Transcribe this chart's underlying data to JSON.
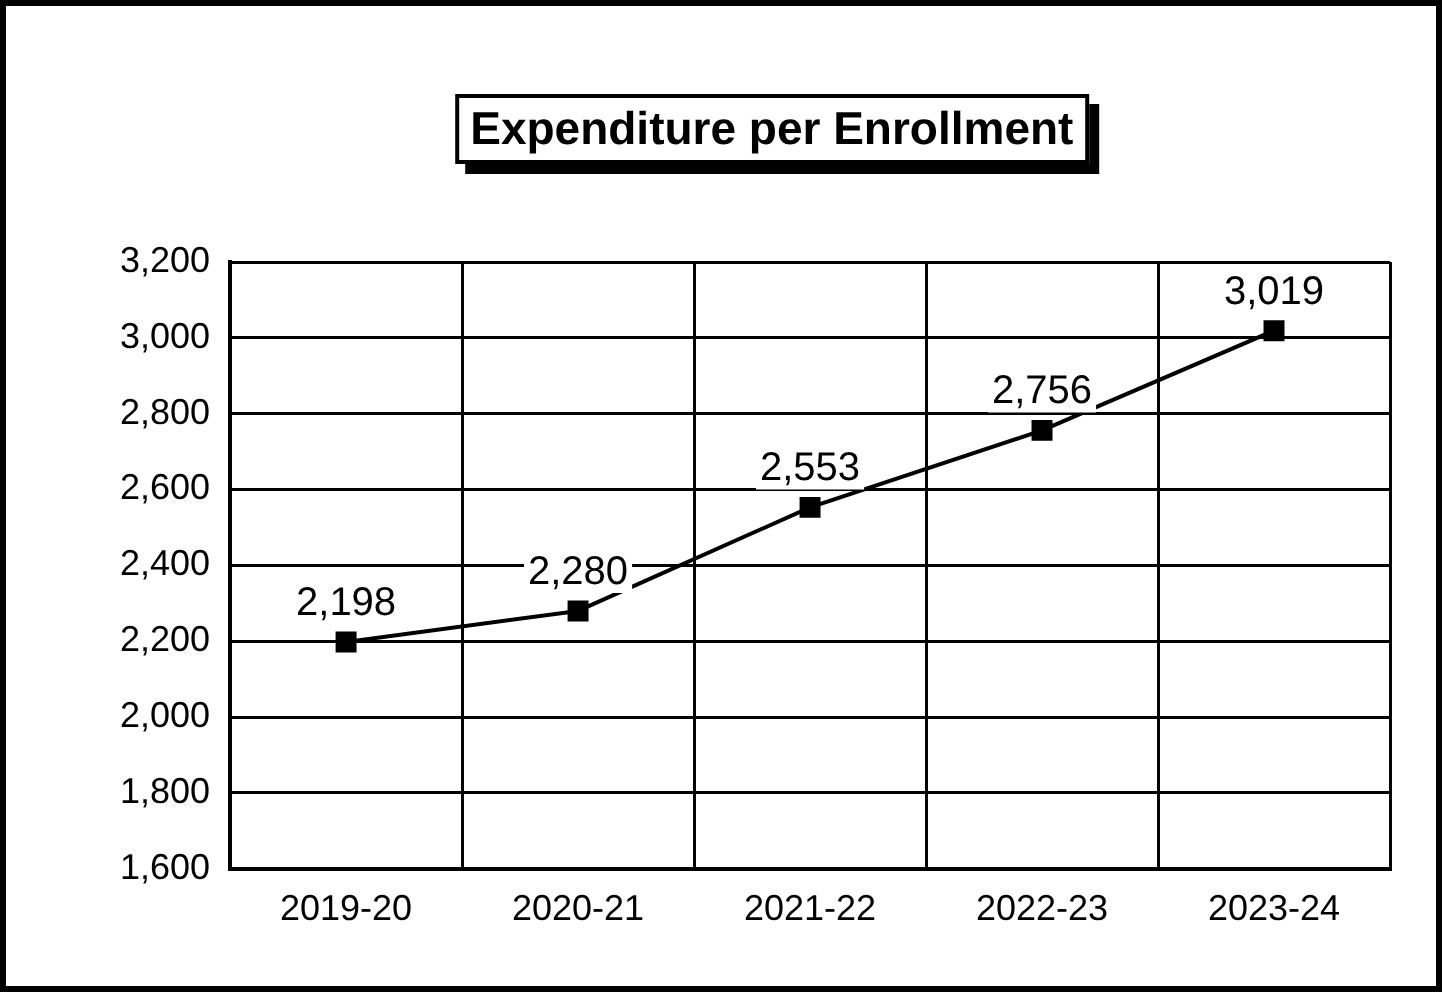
{
  "chart_data": {
    "type": "line",
    "title": "Expenditure per Enrollment",
    "categories": [
      "2019-20",
      "2020-21",
      "2021-22",
      "2022-23",
      "2023-24"
    ],
    "series": [
      {
        "color": "#000000",
        "values": [
          2198,
          2280,
          2553,
          2756,
          3019
        ],
        "value_labels": [
          "2,198",
          "2,280",
          "2,553",
          "2,756",
          "3,019"
        ]
      }
    ],
    "ylim": [
      1600,
      3200
    ],
    "yticks": [
      {
        "value": 1600,
        "label": "1,600"
      },
      {
        "value": 1800,
        "label": "1,800"
      },
      {
        "value": 2000,
        "label": "2,000"
      },
      {
        "value": 2200,
        "label": "2,200"
      },
      {
        "value": 2400,
        "label": "2,400"
      },
      {
        "value": 2600,
        "label": "2,600"
      },
      {
        "value": 2800,
        "label": "2,800"
      },
      {
        "value": 3000,
        "label": "3,000"
      },
      {
        "value": 3200,
        "label": "3,200"
      }
    ],
    "grid": true,
    "legend": false,
    "marker": "square",
    "line_style": "solid"
  }
}
